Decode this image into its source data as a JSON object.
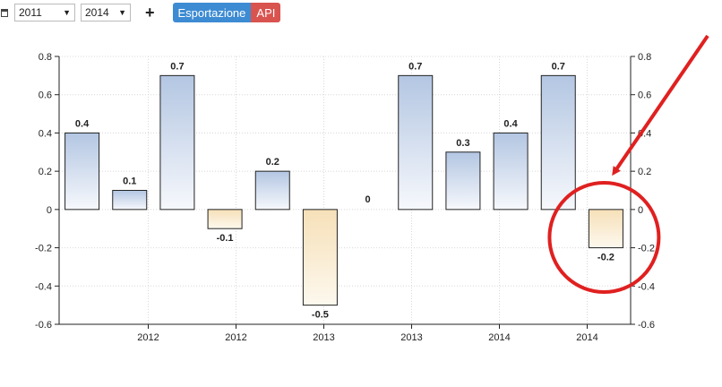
{
  "toolbar": {
    "start_year": "2011",
    "end_year": "2014",
    "add_label": "+",
    "export_label": "Esportazione",
    "api_label": "API",
    "calendar_icon": "calendar-icon",
    "caret_icon": "caret-down-icon"
  },
  "chart_data": {
    "type": "bar",
    "ylim": [
      -0.6,
      0.8
    ],
    "yticks": [
      -0.6,
      -0.4,
      -0.2,
      0,
      0.2,
      0.4,
      0.6,
      0.8
    ],
    "ytick_labels": [
      "-0.6",
      "-0.4",
      "-0.2",
      "0",
      "0.2",
      "0.4",
      "0.6",
      "0.8"
    ],
    "xtick_labels": [
      "2012",
      "2012",
      "2013",
      "2013",
      "2014",
      "2014"
    ],
    "values": [
      0.4,
      0.1,
      0.7,
      -0.1,
      0.2,
      -0.5,
      0,
      0.7,
      0.3,
      0.4,
      0.7,
      -0.2
    ],
    "value_labels": [
      "0.4",
      "0.1",
      "0.7",
      "-0.1",
      "0.2",
      "-0.5",
      "0",
      "0.7",
      "0.3",
      "0.4",
      "0.7",
      "-0.2"
    ],
    "grid": true,
    "colors": {
      "positive_top": "#b3c6e2",
      "positive_bottom": "#f6f8fc",
      "negative_top": "#f6e0b8",
      "negative_bottom": "#fdf8ee",
      "bar_stroke": "#222222",
      "highlight": "#e02020"
    }
  }
}
